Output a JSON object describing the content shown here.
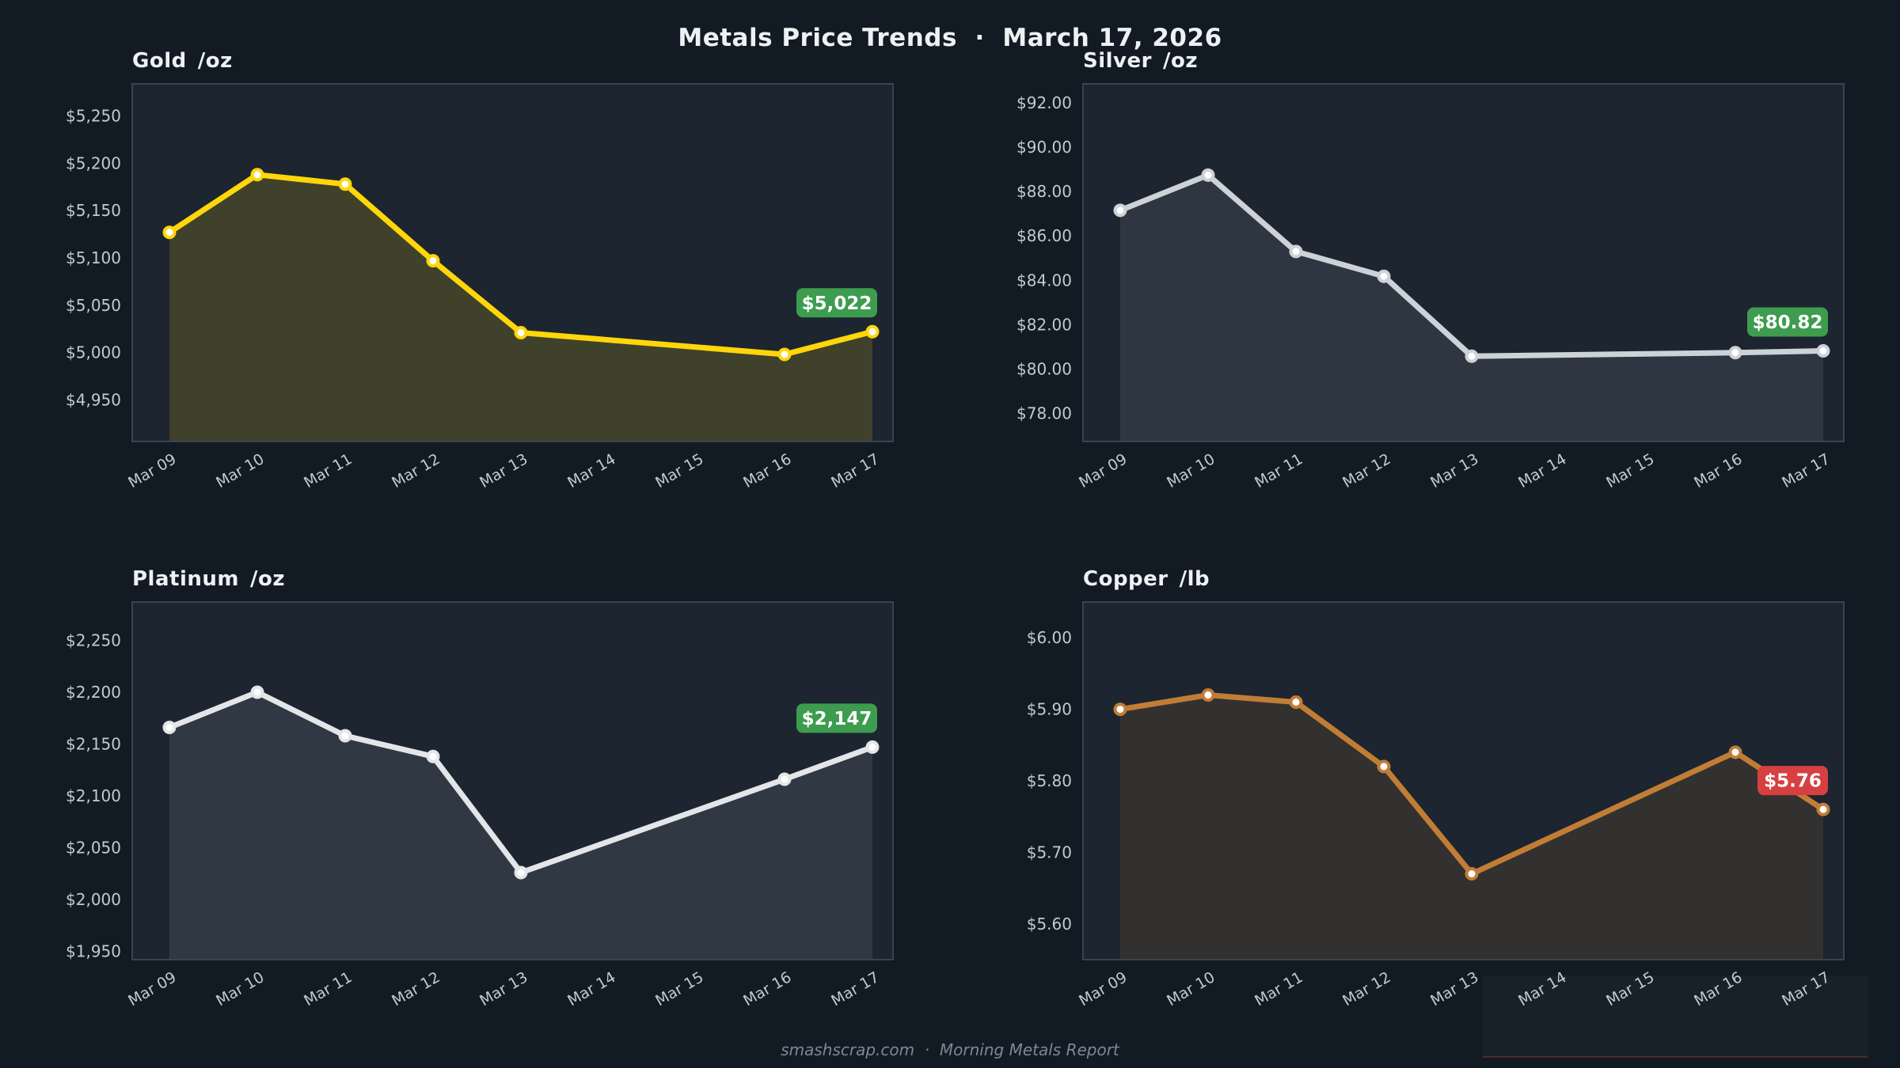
{
  "page": {
    "title": "Metals Price Trends  ·  March 17, 2026",
    "footer": "smashscrap.com  ·  Morning Metals Report",
    "colors": {
      "background": "#121a23",
      "panel_bg": "#1c2530",
      "panel_border": "#3a4450",
      "tick_label": "#c2c9d1",
      "title_text": "#eef1f4",
      "footer_text": "#7e8893",
      "badge_up": "#3d9c4e",
      "badge_down": "#d74040",
      "badge_text": "#ffffff",
      "point_fill": "#ffffff"
    }
  },
  "x_labels": [
    "Mar 09",
    "Mar 10",
    "Mar 11",
    "Mar 12",
    "Mar 13",
    "Mar 14",
    "Mar 15",
    "Mar 16",
    "Mar 17"
  ],
  "chart_data": [
    {
      "type": "line",
      "title": "Gold",
      "unit": "/oz",
      "dates": [
        "Mar 09",
        "Mar 10",
        "Mar 11",
        "Mar 12",
        "Mar 13",
        "Mar 16",
        "Mar 17"
      ],
      "values": [
        5127,
        5188,
        5178,
        5097,
        5021,
        4998,
        5022
      ],
      "y_ticks": [
        5250,
        5200,
        5150,
        5100,
        5050,
        5000,
        4950
      ],
      "y_tick_labels": [
        "$5,250",
        "$5,200",
        "$5,150",
        "$5,100",
        "$5,050",
        "$5,000",
        "$4,950"
      ],
      "ylim": [
        4906,
        5284
      ],
      "last_price_label": "$5,022",
      "badge_color": "#3d9c4e",
      "line_color": "#ffd60a",
      "fill_color": "rgba(255,214,10,0.16)"
    },
    {
      "type": "line",
      "title": "Silver",
      "unit": "/oz",
      "dates": [
        "Mar 09",
        "Mar 10",
        "Mar 11",
        "Mar 12",
        "Mar 13",
        "Mar 16",
        "Mar 17"
      ],
      "values": [
        87.15,
        88.74,
        85.3,
        84.18,
        80.58,
        80.74,
        80.82
      ],
      "y_ticks": [
        92,
        90,
        88,
        86,
        84,
        82,
        80,
        78
      ],
      "y_tick_labels": [
        "$92.00",
        "$90.00",
        "$88.00",
        "$86.00",
        "$84.00",
        "$82.00",
        "$80.00",
        "$78.00"
      ],
      "ylim": [
        76.74,
        92.85
      ],
      "last_price_label": "$80.82",
      "badge_color": "#3d9c4e",
      "line_color": "#ccd2d8",
      "fill_color": "rgba(205,211,217,0.10)"
    },
    {
      "type": "line",
      "title": "Platinum",
      "unit": "/oz",
      "dates": [
        "Mar 09",
        "Mar 10",
        "Mar 11",
        "Mar 12",
        "Mar 13",
        "Mar 16",
        "Mar 17"
      ],
      "values": [
        2166,
        2200,
        2158,
        2138,
        2026,
        2116,
        2147
      ],
      "y_ticks": [
        2250,
        2200,
        2150,
        2100,
        2050,
        2000,
        1950
      ],
      "y_tick_labels": [
        "$2,250",
        "$2,200",
        "$2,150",
        "$2,100",
        "$2,050",
        "$2,000",
        "$1,950"
      ],
      "ylim": [
        1942,
        2287
      ],
      "last_price_label": "$2,147",
      "badge_color": "#3d9c4e",
      "line_color": "#e3e6e9",
      "fill_color": "rgba(227,230,233,0.10)"
    },
    {
      "type": "line",
      "title": "Copper",
      "unit": "/lb",
      "dates": [
        "Mar 09",
        "Mar 10",
        "Mar 11",
        "Mar 12",
        "Mar 13",
        "Mar 16",
        "Mar 17"
      ],
      "values": [
        5.9,
        5.92,
        5.91,
        5.82,
        5.67,
        5.84,
        5.76
      ],
      "y_ticks": [
        6.0,
        5.9,
        5.8,
        5.7,
        5.6
      ],
      "y_tick_labels": [
        "$6.00",
        "$5.90",
        "$5.80",
        "$5.70",
        "$5.60"
      ],
      "ylim": [
        5.55,
        6.05
      ],
      "last_price_label": "$5.76",
      "badge_color": "#d74040",
      "line_color": "#c27d35",
      "fill_color": "rgba(194,125,53,0.14)"
    }
  ]
}
